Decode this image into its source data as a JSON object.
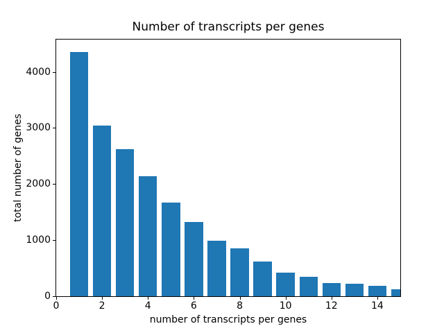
{
  "chart_data": {
    "type": "bar",
    "title": "Number of transcripts per genes",
    "xlabel": "number of transcripts per genes",
    "ylabel": "total number of genes",
    "x": [
      1,
      2,
      3,
      4,
      5,
      6,
      7,
      8,
      9,
      10,
      11,
      12,
      13,
      14,
      15
    ],
    "values": [
      4350,
      3040,
      2620,
      2140,
      1670,
      1320,
      990,
      850,
      620,
      420,
      350,
      230,
      220,
      190,
      125
    ],
    "bar_width": 0.8,
    "bar_color": "#1f77b4",
    "xlim": [
      0,
      15
    ],
    "ylim": [
      0,
      4575
    ],
    "xticks": [
      0,
      2,
      4,
      6,
      8,
      10,
      12,
      14
    ],
    "yticks": [
      0,
      1000,
      2000,
      3000,
      4000
    ],
    "grid": false,
    "legend": null,
    "background_color": "#ffffff",
    "last_bar_clipped_at_xlim": true
  }
}
